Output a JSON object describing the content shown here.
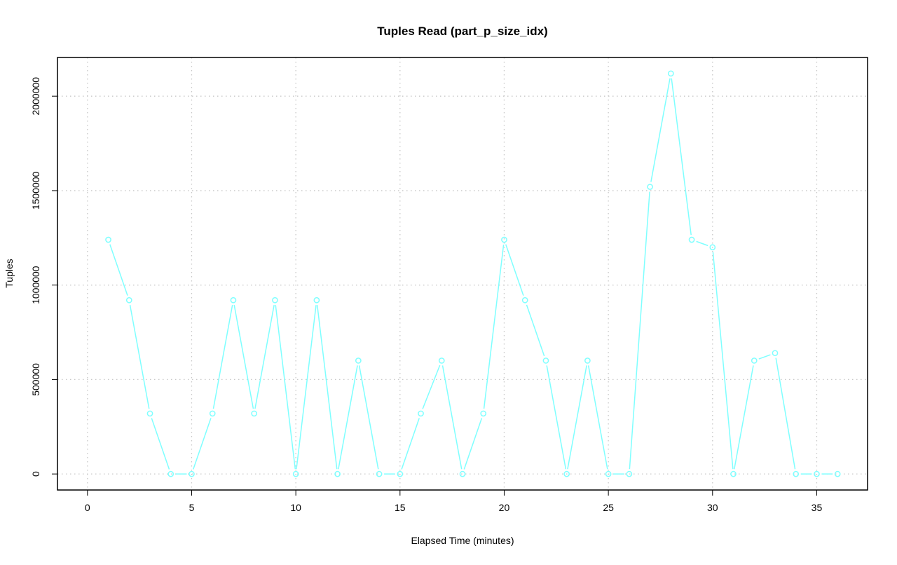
{
  "chart_data": {
    "type": "line",
    "title": "Tuples Read (part_p_size_idx)",
    "xlabel": "Elapsed Time (minutes)",
    "ylabel": "Tuples",
    "xlim": [
      -1.44,
      37.44
    ],
    "ylim": [
      -84800,
      2204800
    ],
    "grid": true,
    "xticks": [
      0,
      5,
      10,
      15,
      20,
      25,
      30,
      35
    ],
    "yticks": [
      0,
      500000,
      1000000,
      1500000,
      2000000
    ],
    "xtick_labels": [
      "0",
      "5",
      "10",
      "15",
      "20",
      "25",
      "30",
      "35"
    ],
    "ytick_labels": [
      "0",
      "500000",
      "1000000",
      "1500000",
      "2000000"
    ],
    "series": [
      {
        "name": "part_p_size_idx",
        "color": "#7fffff",
        "x": [
          1,
          2,
          3,
          4,
          5,
          6,
          7,
          8,
          9,
          10,
          11,
          12,
          13,
          14,
          15,
          16,
          17,
          18,
          19,
          20,
          21,
          22,
          23,
          24,
          25,
          26,
          27,
          28,
          29,
          30,
          31,
          32,
          33,
          34,
          35,
          36
        ],
        "values": [
          1240000,
          920000,
          320000,
          0,
          0,
          320000,
          920000,
          320000,
          920000,
          0,
          920000,
          0,
          600000,
          0,
          0,
          320000,
          600000,
          0,
          320000,
          1240000,
          920000,
          600000,
          0,
          600000,
          0,
          0,
          1520000,
          2120000,
          1240000,
          1200000,
          0,
          600000,
          640000,
          0,
          0,
          0
        ]
      }
    ]
  }
}
